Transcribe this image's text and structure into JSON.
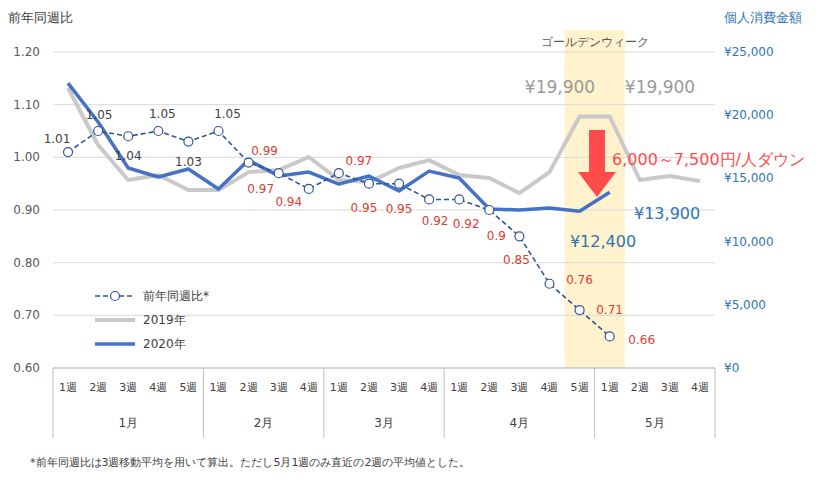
{
  "chart_data": {
    "type": "line",
    "y_label": "前年同週比",
    "y2_label": "個人消費金額",
    "categories": [
      "1週",
      "2週",
      "3週",
      "4週",
      "5週",
      "1週",
      "2週",
      "3週",
      "4週",
      "1週",
      "2週",
      "3週",
      "4週",
      "1週",
      "2週",
      "3週",
      "4週",
      "5週",
      "1週",
      "2週",
      "3週",
      "4週"
    ],
    "groups": [
      {
        "label": "1月",
        "count": 5
      },
      {
        "label": "2月",
        "count": 4
      },
      {
        "label": "3月",
        "count": 4
      },
      {
        "label": "4月",
        "count": 5
      },
      {
        "label": "5月",
        "count": 4
      }
    ],
    "series": [
      {
        "name": "前年同週比*",
        "color": "#2f5597",
        "axis": "y",
        "line_style": "dashed",
        "marker": "circle",
        "data_labels": true,
        "values": [
          1.01,
          1.05,
          1.04,
          1.05,
          1.03,
          1.05,
          0.99,
          0.97,
          0.94,
          0.97,
          0.95,
          0.95,
          0.92,
          0.92,
          0.9,
          0.85,
          0.76,
          0.71,
          0.66,
          null,
          null,
          null
        ]
      },
      {
        "name": "2019年",
        "color": "#c9c9c9",
        "axis": "y2",
        "line_style": "solid",
        "values": [
          22150,
          17640,
          14870,
          15270,
          14080,
          14080,
          15500,
          15660,
          16690,
          14870,
          14710,
          15820,
          16450,
          15270,
          15030,
          13840,
          15500,
          19900,
          19900,
          14870,
          15190,
          14790
        ]
      },
      {
        "name": "2020年",
        "color": "#4472c4",
        "axis": "y2",
        "line_style": "solid",
        "values": [
          22540,
          19460,
          15820,
          15110,
          15740,
          14160,
          16450,
          15190,
          15500,
          14550,
          15190,
          14000,
          15580,
          15030,
          12580,
          12500,
          12660,
          12400,
          13900,
          null,
          null,
          null
        ]
      }
    ],
    "ylim": [
      0.6,
      1.2
    ],
    "yticks": [
      {
        "value": 0.6,
        "label": "0.60"
      },
      {
        "value": 0.7,
        "label": "0.70"
      },
      {
        "value": 0.8,
        "label": "0.80"
      },
      {
        "value": 0.9,
        "label": "0.90"
      },
      {
        "value": 1.0,
        "label": "1.00"
      },
      {
        "value": 1.1,
        "label": "1.10"
      },
      {
        "value": 1.2,
        "label": "1.20"
      }
    ],
    "y2lim": [
      0,
      25000
    ],
    "y2ticks": [
      {
        "value": 0,
        "label": "¥0"
      },
      {
        "value": 5000,
        "label": "¥5,000"
      },
      {
        "value": 10000,
        "label": "¥10,000"
      },
      {
        "value": 15000,
        "label": "¥15,000"
      },
      {
        "value": 20000,
        "label": "¥20,000"
      },
      {
        "value": 25000,
        "label": "¥25,000"
      }
    ],
    "grid": true,
    "legend": "lower-left",
    "annotations": [
      {
        "text": "ゴールデンウィーク"
      },
      {
        "text": "¥19,900"
      },
      {
        "text": "¥19,900"
      },
      {
        "text": "6,000～7,500円/人ダウン"
      },
      {
        "text": "¥13,900"
      },
      {
        "text": "¥12,400"
      }
    ],
    "footnote": "*前年同週比は3週移動平均を用いて算出。ただし5月1週のみ直近の2週の平均値とした。"
  }
}
